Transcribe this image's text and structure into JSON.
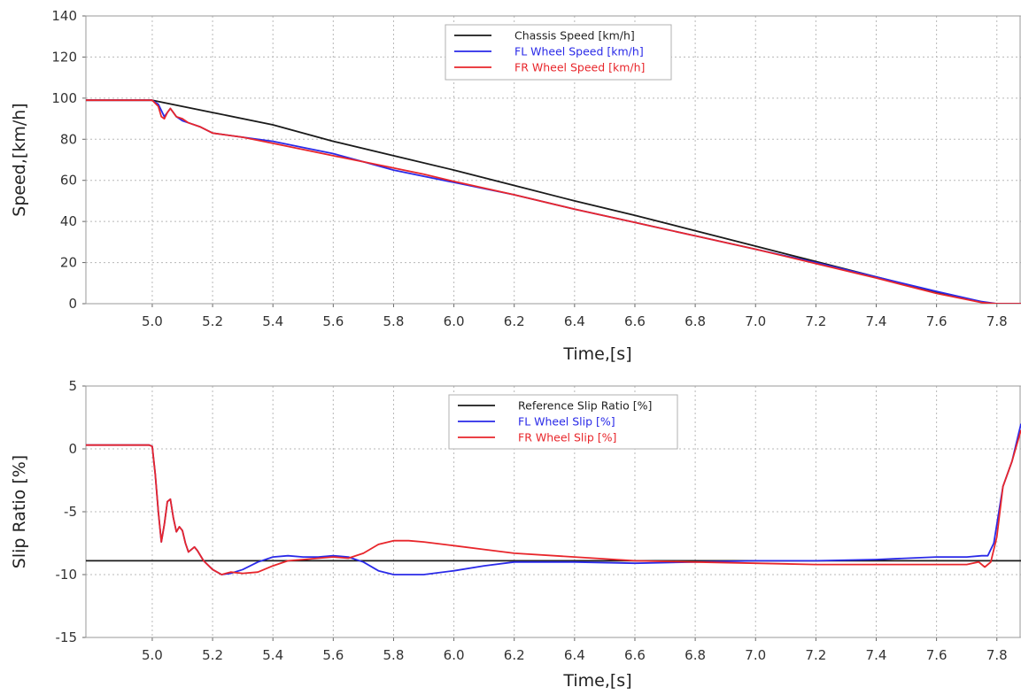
{
  "chart_data": [
    {
      "type": "line",
      "xlabel": "Time,[s]",
      "ylabel": "Speed,[km/h]",
      "xlim": [
        4.78,
        7.88
      ],
      "ylim": [
        0,
        140
      ],
      "xticks": [
        "5.0",
        "5.2",
        "5.4",
        "5.6",
        "5.8",
        "6.0",
        "6.2",
        "6.4",
        "6.6",
        "6.8",
        "7.0",
        "7.2",
        "7.4",
        "7.6",
        "7.8"
      ],
      "yticks": [
        "0",
        "20",
        "40",
        "60",
        "80",
        "100",
        "120",
        "140"
      ],
      "grid": true,
      "legend_position": "top-center",
      "series": [
        {
          "name": "Chassis Speed [km/h]",
          "color": "#1a1a1a",
          "points": [
            [
              4.78,
              99
            ],
            [
              5.0,
              99
            ],
            [
              5.2,
              93
            ],
            [
              5.4,
              87
            ],
            [
              5.6,
              79
            ],
            [
              5.8,
              72
            ],
            [
              6.0,
              65
            ],
            [
              6.2,
              57.5
            ],
            [
              6.4,
              50
            ],
            [
              6.6,
              43
            ],
            [
              6.8,
              35.5
            ],
            [
              7.0,
              28
            ],
            [
              7.2,
              20.5
            ],
            [
              7.4,
              13
            ],
            [
              7.6,
              5.5
            ],
            [
              7.78,
              0
            ],
            [
              7.88,
              0
            ]
          ]
        },
        {
          "name": "FL Wheel Speed [km/h]",
          "color": "#2a2ae8",
          "points": [
            [
              4.78,
              99
            ],
            [
              5.0,
              99
            ],
            [
              5.02,
              97
            ],
            [
              5.04,
              91
            ],
            [
              5.05,
              93
            ],
            [
              5.06,
              95
            ],
            [
              5.08,
              91
            ],
            [
              5.1,
              89
            ],
            [
              5.12,
              88
            ],
            [
              5.16,
              86
            ],
            [
              5.2,
              83
            ],
            [
              5.3,
              81
            ],
            [
              5.4,
              79
            ],
            [
              5.5,
              76
            ],
            [
              5.6,
              73
            ],
            [
              5.7,
              69
            ],
            [
              5.8,
              65
            ],
            [
              5.9,
              62
            ],
            [
              6.0,
              59
            ],
            [
              6.2,
              53
            ],
            [
              6.4,
              46
            ],
            [
              6.6,
              39.5
            ],
            [
              6.8,
              33
            ],
            [
              7.0,
              26.5
            ],
            [
              7.2,
              20
            ],
            [
              7.4,
              13
            ],
            [
              7.6,
              6
            ],
            [
              7.75,
              1
            ],
            [
              7.8,
              0
            ],
            [
              7.88,
              0
            ]
          ]
        },
        {
          "name": "FR Wheel Speed [km/h]",
          "color": "#e8262b",
          "points": [
            [
              4.78,
              99
            ],
            [
              5.0,
              99
            ],
            [
              5.02,
              96
            ],
            [
              5.03,
              91
            ],
            [
              5.04,
              90
            ],
            [
              5.05,
              93
            ],
            [
              5.06,
              95
            ],
            [
              5.08,
              91
            ],
            [
              5.1,
              90
            ],
            [
              5.12,
              88
            ],
            [
              5.16,
              86
            ],
            [
              5.2,
              83
            ],
            [
              5.3,
              81
            ],
            [
              5.4,
              78
            ],
            [
              5.5,
              75
            ],
            [
              5.6,
              72
            ],
            [
              5.7,
              69
            ],
            [
              5.8,
              66
            ],
            [
              5.9,
              63
            ],
            [
              6.0,
              59.5
            ],
            [
              6.2,
              53
            ],
            [
              6.4,
              46
            ],
            [
              6.6,
              39.5
            ],
            [
              6.8,
              33
            ],
            [
              7.0,
              26.5
            ],
            [
              7.2,
              19.5
            ],
            [
              7.4,
              12.5
            ],
            [
              7.6,
              5
            ],
            [
              7.75,
              0.5
            ],
            [
              7.8,
              0
            ],
            [
              7.88,
              0
            ]
          ]
        }
      ]
    },
    {
      "type": "line",
      "xlabel": "Time,[s]",
      "ylabel": "Slip Ratio [%]",
      "xlim": [
        4.78,
        7.88
      ],
      "ylim": [
        -15,
        5
      ],
      "xticks": [
        "5.0",
        "5.2",
        "5.4",
        "5.6",
        "5.8",
        "6.0",
        "6.2",
        "6.4",
        "6.6",
        "6.8",
        "7.0",
        "7.2",
        "7.4",
        "7.6",
        "7.8"
      ],
      "yticks": [
        "-15",
        "-10",
        "-5",
        "0",
        "5"
      ],
      "grid": true,
      "legend_position": "top-center",
      "series": [
        {
          "name": "Reference Slip Ratio [%]",
          "color": "#1a1a1a",
          "points": [
            [
              4.78,
              -8.9
            ],
            [
              7.88,
              -8.9
            ]
          ]
        },
        {
          "name": "FL Wheel Slip [%]",
          "color": "#2a2ae8",
          "points": [
            [
              4.78,
              0.3
            ],
            [
              4.99,
              0.3
            ],
            [
              5.0,
              0.2
            ],
            [
              5.01,
              -2
            ],
            [
              5.02,
              -5
            ],
            [
              5.03,
              -7.4
            ],
            [
              5.04,
              -6
            ],
            [
              5.05,
              -4.2
            ],
            [
              5.06,
              -4.0
            ],
            [
              5.07,
              -5.5
            ],
            [
              5.08,
              -6.6
            ],
            [
              5.09,
              -6.2
            ],
            [
              5.1,
              -6.5
            ],
            [
              5.11,
              -7.5
            ],
            [
              5.12,
              -8.2
            ],
            [
              5.14,
              -7.8
            ],
            [
              5.15,
              -8.1
            ],
            [
              5.17,
              -8.9
            ],
            [
              5.2,
              -9.6
            ],
            [
              5.23,
              -10
            ],
            [
              5.26,
              -9.9
            ],
            [
              5.3,
              -9.6
            ],
            [
              5.35,
              -9.0
            ],
            [
              5.4,
              -8.6
            ],
            [
              5.45,
              -8.5
            ],
            [
              5.5,
              -8.6
            ],
            [
              5.55,
              -8.6
            ],
            [
              5.6,
              -8.5
            ],
            [
              5.65,
              -8.6
            ],
            [
              5.7,
              -9.0
            ],
            [
              5.75,
              -9.7
            ],
            [
              5.8,
              -10
            ],
            [
              5.9,
              -10
            ],
            [
              6.0,
              -9.7
            ],
            [
              6.1,
              -9.3
            ],
            [
              6.2,
              -9.0
            ],
            [
              6.4,
              -9.0
            ],
            [
              6.6,
              -9.1
            ],
            [
              6.8,
              -9.0
            ],
            [
              7.0,
              -8.9
            ],
            [
              7.2,
              -8.9
            ],
            [
              7.4,
              -8.8
            ],
            [
              7.6,
              -8.6
            ],
            [
              7.7,
              -8.6
            ],
            [
              7.75,
              -8.5
            ],
            [
              7.77,
              -8.5
            ],
            [
              7.79,
              -7.5
            ],
            [
              7.82,
              -3
            ],
            [
              7.85,
              -1
            ],
            [
              7.88,
              2
            ]
          ]
        },
        {
          "name": "FR Wheel Slip [%]",
          "color": "#e8262b",
          "points": [
            [
              4.78,
              0.3
            ],
            [
              4.99,
              0.3
            ],
            [
              5.0,
              0.2
            ],
            [
              5.01,
              -2
            ],
            [
              5.02,
              -5
            ],
            [
              5.03,
              -7.4
            ],
            [
              5.04,
              -6
            ],
            [
              5.05,
              -4.2
            ],
            [
              5.06,
              -4.0
            ],
            [
              5.07,
              -5.5
            ],
            [
              5.08,
              -6.6
            ],
            [
              5.09,
              -6.2
            ],
            [
              5.1,
              -6.5
            ],
            [
              5.11,
              -7.5
            ],
            [
              5.12,
              -8.2
            ],
            [
              5.14,
              -7.8
            ],
            [
              5.15,
              -8.1
            ],
            [
              5.17,
              -8.9
            ],
            [
              5.2,
              -9.6
            ],
            [
              5.23,
              -10
            ],
            [
              5.26,
              -9.8
            ],
            [
              5.3,
              -9.9
            ],
            [
              5.35,
              -9.8
            ],
            [
              5.4,
              -9.3
            ],
            [
              5.45,
              -8.9
            ],
            [
              5.5,
              -8.8
            ],
            [
              5.55,
              -8.7
            ],
            [
              5.6,
              -8.6
            ],
            [
              5.65,
              -8.7
            ],
            [
              5.7,
              -8.3
            ],
            [
              5.75,
              -7.6
            ],
            [
              5.8,
              -7.3
            ],
            [
              5.85,
              -7.3
            ],
            [
              5.9,
              -7.4
            ],
            [
              6.0,
              -7.7
            ],
            [
              6.1,
              -8.0
            ],
            [
              6.2,
              -8.3
            ],
            [
              6.4,
              -8.6
            ],
            [
              6.6,
              -8.9
            ],
            [
              6.8,
              -9.0
            ],
            [
              7.0,
              -9.1
            ],
            [
              7.2,
              -9.2
            ],
            [
              7.4,
              -9.2
            ],
            [
              7.6,
              -9.2
            ],
            [
              7.7,
              -9.2
            ],
            [
              7.74,
              -9.0
            ],
            [
              7.76,
              -9.4
            ],
            [
              7.78,
              -9.0
            ],
            [
              7.8,
              -7.0
            ],
            [
              7.82,
              -3
            ],
            [
              7.85,
              -1
            ],
            [
              7.88,
              1.5
            ]
          ]
        }
      ]
    }
  ]
}
